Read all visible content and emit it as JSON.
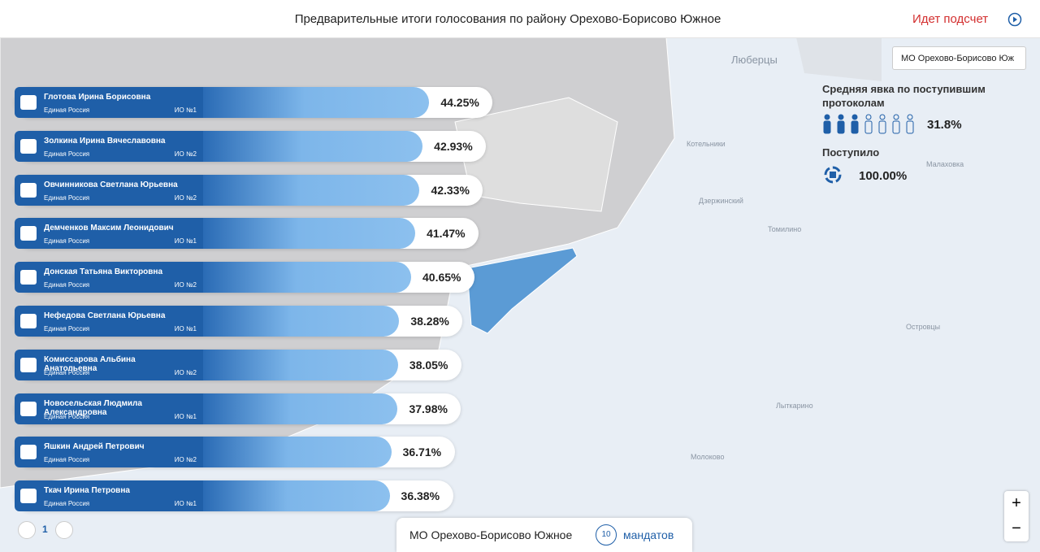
{
  "header": {
    "title": "Предварительные итоги голосования по району Орехово-Борисово Южное",
    "status": "Идет подсчет"
  },
  "dropdown": "МО Орехово-Борисово Юж",
  "turnout": {
    "label": "Средняя явка по поступившим протоколам",
    "value": "31.8%"
  },
  "received": {
    "label": "Поступило",
    "value": "100.00%"
  },
  "candidates": [
    {
      "name": "Глотова Ирина Борисовна",
      "party": "Единая Россия",
      "district": "ИО №1",
      "percent": "44.25%"
    },
    {
      "name": "Золкина Ирина Вячеславовна",
      "party": "Единая Россия",
      "district": "ИО №2",
      "percent": "42.93%"
    },
    {
      "name": "Овчинникова Светлана Юрьевна",
      "party": "Единая Россия",
      "district": "ИО №2",
      "percent": "42.33%"
    },
    {
      "name": "Демченков Максим Леонидович",
      "party": "Единая Россия",
      "district": "ИО №1",
      "percent": "41.47%"
    },
    {
      "name": "Донская Татьяна Викторовна",
      "party": "Единая Россия",
      "district": "ИО №2",
      "percent": "40.65%"
    },
    {
      "name": "Нефедова Светлана Юрьевна",
      "party": "Единая Россия",
      "district": "ИО №1",
      "percent": "38.28%"
    },
    {
      "name": "Комиссарова Альбина Анатольевна",
      "party": "Единая Россия",
      "district": "ИО №2",
      "percent": "38.05%"
    },
    {
      "name": "Новосельская Людмила Александровна",
      "party": "Единая Россия",
      "district": "ИО №1",
      "percent": "37.98%"
    },
    {
      "name": "Яшкин Андрей Петрович",
      "party": "Единая Россия",
      "district": "ИО №2",
      "percent": "36.71%"
    },
    {
      "name": "Ткач Ирина Петровна",
      "party": "Единая Россия",
      "district": "ИО №1",
      "percent": "36.38%"
    }
  ],
  "pager": {
    "page": "1"
  },
  "footer": {
    "district": "МО Орехово-Борисово Южное",
    "mandates": "10",
    "mandates_label": "мандатов"
  },
  "map": {
    "labels": [
      "Люберцы",
      "Котельники",
      "Дзержинский",
      "Лыткарино",
      "Островцы",
      "Молоково",
      "Томилино",
      "Малаховка"
    ]
  }
}
